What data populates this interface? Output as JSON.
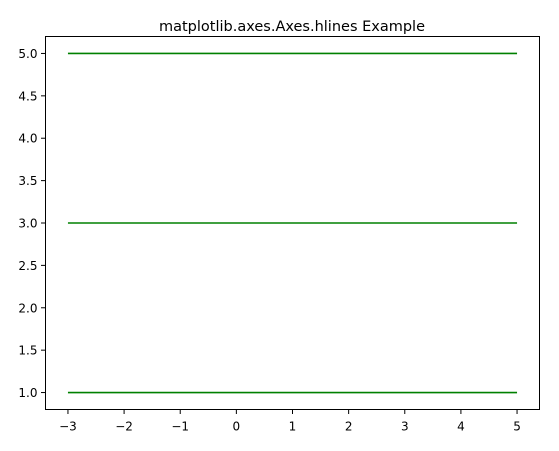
{
  "chart_data": {
    "type": "line",
    "title": "matplotlib.axes.Axes.hlines Example",
    "xlabel": "",
    "ylabel": "",
    "xlim": [
      -3.4,
      5.4
    ],
    "ylim": [
      0.8,
      5.2
    ],
    "grid": false,
    "x_ticks": [
      -3,
      -2,
      -1,
      0,
      1,
      2,
      3,
      4,
      5
    ],
    "x_tick_labels": [
      "−3",
      "−2",
      "−1",
      "0",
      "1",
      "2",
      "3",
      "4",
      "5"
    ],
    "y_ticks": [
      1.0,
      1.5,
      2.0,
      2.5,
      3.0,
      3.5,
      4.0,
      4.5,
      5.0
    ],
    "y_tick_labels": [
      "1.0",
      "1.5",
      "2.0",
      "2.5",
      "3.0",
      "3.5",
      "4.0",
      "4.5",
      "5.0"
    ],
    "series": [
      {
        "kind": "hlines",
        "color": "#008000",
        "lines": [
          {
            "y": 1,
            "xmin": -3,
            "xmax": 5
          },
          {
            "y": 3,
            "xmin": -3,
            "xmax": 5
          },
          {
            "y": 5,
            "xmin": -3,
            "xmax": 5
          }
        ]
      }
    ]
  }
}
